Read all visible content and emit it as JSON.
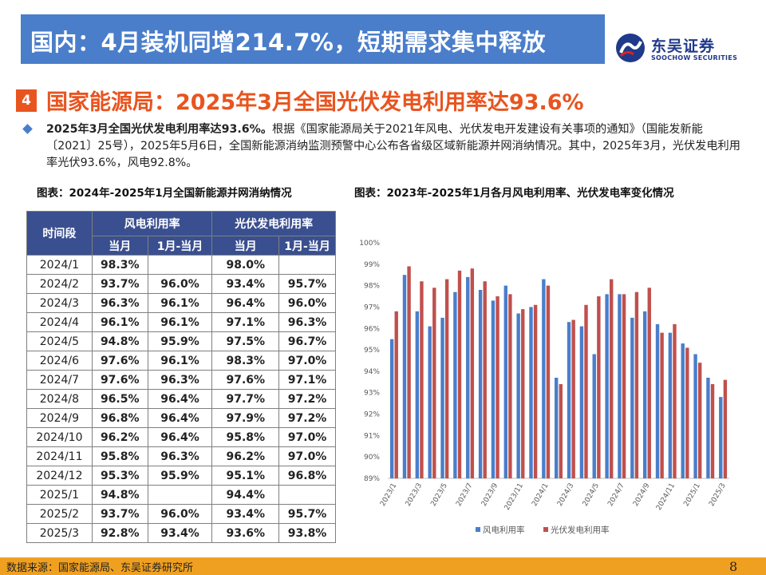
{
  "header": {
    "title": "国内：4月装机同增214.7%，短期需求集中释放",
    "logo_cn": "东吴证券",
    "logo_en": "SOOCHOW SECURITIES"
  },
  "section": {
    "number": "4",
    "title": "国家能源局：2025年3月全国光伏发电利用率达93.6%"
  },
  "bullet": {
    "bold": "2025年3月全国光伏发电利用率达93.6%。",
    "text": "根据《国家能源局关于2021年风电、光伏发电开发建设有关事项的通知》（国能发新能〔2021〕25号），2025年5月6日，全国新能源消纳监测预警中心公布各省级区域新能源并网消纳情况。其中，2025年3月，光伏发电利用率光伏93.6%，风电92.8%。"
  },
  "table_caption": "图表：2024年-2025年1月全国新能源并网消纳情况",
  "chart_caption": "图表：2023年-2025年1月各月风电利用率、光伏发电率变化情况",
  "table": {
    "header_period": "时间段",
    "header_wind": "风电利用率",
    "header_pv": "光伏发电利用率",
    "sub_month": "当月",
    "sub_ytd": "1月-当月",
    "rows": [
      {
        "period": "2024/1",
        "wind_m": "98.3%",
        "wind_ytd": "",
        "pv_m": "98.0%",
        "pv_ytd": ""
      },
      {
        "period": "2024/2",
        "wind_m": "93.7%",
        "wind_ytd": "96.0%",
        "pv_m": "93.4%",
        "pv_ytd": "95.7%"
      },
      {
        "period": "2024/3",
        "wind_m": "96.3%",
        "wind_ytd": "96.1%",
        "pv_m": "96.4%",
        "pv_ytd": "96.0%"
      },
      {
        "period": "2024/4",
        "wind_m": "96.1%",
        "wind_ytd": "96.1%",
        "pv_m": "97.1%",
        "pv_ytd": "96.3%"
      },
      {
        "period": "2024/5",
        "wind_m": "94.8%",
        "wind_ytd": "95.9%",
        "pv_m": "97.5%",
        "pv_ytd": "96.7%"
      },
      {
        "period": "2024/6",
        "wind_m": "97.6%",
        "wind_ytd": "96.1%",
        "pv_m": "98.3%",
        "pv_ytd": "97.0%"
      },
      {
        "period": "2024/7",
        "wind_m": "97.6%",
        "wind_ytd": "96.3%",
        "pv_m": "97.6%",
        "pv_ytd": "97.1%"
      },
      {
        "period": "2024/8",
        "wind_m": "96.5%",
        "wind_ytd": "96.4%",
        "pv_m": "97.7%",
        "pv_ytd": "97.2%"
      },
      {
        "period": "2024/9",
        "wind_m": "96.8%",
        "wind_ytd": "96.4%",
        "pv_m": "97.9%",
        "pv_ytd": "97.2%"
      },
      {
        "period": "2024/10",
        "wind_m": "96.2%",
        "wind_ytd": "96.4%",
        "pv_m": "95.8%",
        "pv_ytd": "97.0%"
      },
      {
        "period": "2024/11",
        "wind_m": "95.8%",
        "wind_ytd": "96.3%",
        "pv_m": "96.2%",
        "pv_ytd": "97.0%"
      },
      {
        "period": "2024/12",
        "wind_m": "95.3%",
        "wind_ytd": "95.9%",
        "pv_m": "95.1%",
        "pv_ytd": "96.8%"
      },
      {
        "period": "2025/1",
        "wind_m": "94.8%",
        "wind_ytd": "",
        "pv_m": "94.4%",
        "pv_ytd": ""
      },
      {
        "period": "2025/2",
        "wind_m": "93.7%",
        "wind_ytd": "96.0%",
        "pv_m": "93.4%",
        "pv_ytd": "95.7%"
      },
      {
        "period": "2025/3",
        "wind_m": "92.8%",
        "wind_ytd": "93.4%",
        "pv_m": "93.6%",
        "pv_ytd": "93.8%"
      }
    ]
  },
  "chart_data": {
    "type": "bar",
    "categories": [
      "2023/1",
      "2023/2",
      "2023/3",
      "2023/4",
      "2023/5",
      "2023/6",
      "2023/7",
      "2023/8",
      "2023/9",
      "2023/10",
      "2023/11",
      "2023/12",
      "2024/1",
      "2024/2",
      "2024/3",
      "2024/4",
      "2024/5",
      "2024/6",
      "2024/7",
      "2024/8",
      "2024/9",
      "2024/10",
      "2024/11",
      "2024/12",
      "2025/1",
      "2025/2",
      "2025/3"
    ],
    "x_tick_labels": [
      "2023/1",
      "2023/3",
      "2023/5",
      "2023/7",
      "2023/9",
      "2023/11",
      "2024/1",
      "2024/3",
      "2024/5",
      "2024/7",
      "2024/9",
      "2024/11",
      "2025/1",
      "2025/3"
    ],
    "series": [
      {
        "name": "风电利用率",
        "color": "#4a7ecb",
        "values": [
          95.5,
          98.5,
          96.8,
          96.1,
          96.5,
          97.7,
          98.4,
          97.8,
          97.3,
          98.0,
          96.7,
          97.0,
          98.3,
          93.7,
          96.3,
          96.1,
          94.8,
          97.6,
          97.6,
          96.5,
          96.8,
          96.2,
          95.8,
          95.3,
          94.8,
          93.7,
          92.8
        ]
      },
      {
        "name": "光伏发电利用率",
        "color": "#c0504d",
        "values": [
          96.8,
          98.9,
          98.2,
          97.9,
          98.3,
          98.7,
          98.8,
          98.2,
          97.5,
          97.6,
          96.9,
          97.1,
          98.0,
          93.4,
          96.4,
          97.1,
          97.5,
          98.3,
          97.6,
          97.7,
          97.9,
          95.8,
          96.2,
          95.1,
          94.4,
          93.4,
          93.6
        ]
      }
    ],
    "ylim": [
      89,
      100
    ],
    "y_ticks": [
      "89%",
      "90%",
      "91%",
      "92%",
      "93%",
      "94%",
      "95%",
      "96%",
      "97%",
      "98%",
      "99%",
      "100%"
    ],
    "legend_position": "bottom"
  },
  "footer": {
    "source": "数据来源：国家能源局、东吴证券研究所",
    "page": "8"
  }
}
